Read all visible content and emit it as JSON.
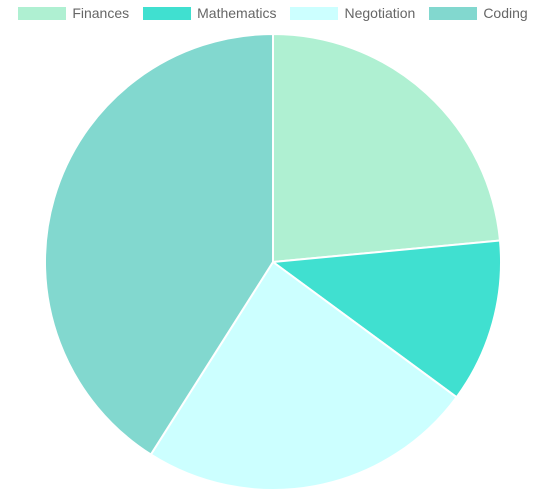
{
  "chart_data": {
    "type": "pie",
    "title": "",
    "categories": [
      "Finances",
      "Mathematics",
      "Negotiation",
      "Coding"
    ],
    "values": [
      23.5,
      11.6,
      23.9,
      41.0
    ],
    "unit": "",
    "colors": [
      "#aff0d2",
      "#40e0d0",
      "#ccffff",
      "#82d8cf"
    ],
    "legend_position": "top",
    "slice_border_color": "#ffffff",
    "start_angle_deg": -90,
    "direction": "clockwise"
  }
}
